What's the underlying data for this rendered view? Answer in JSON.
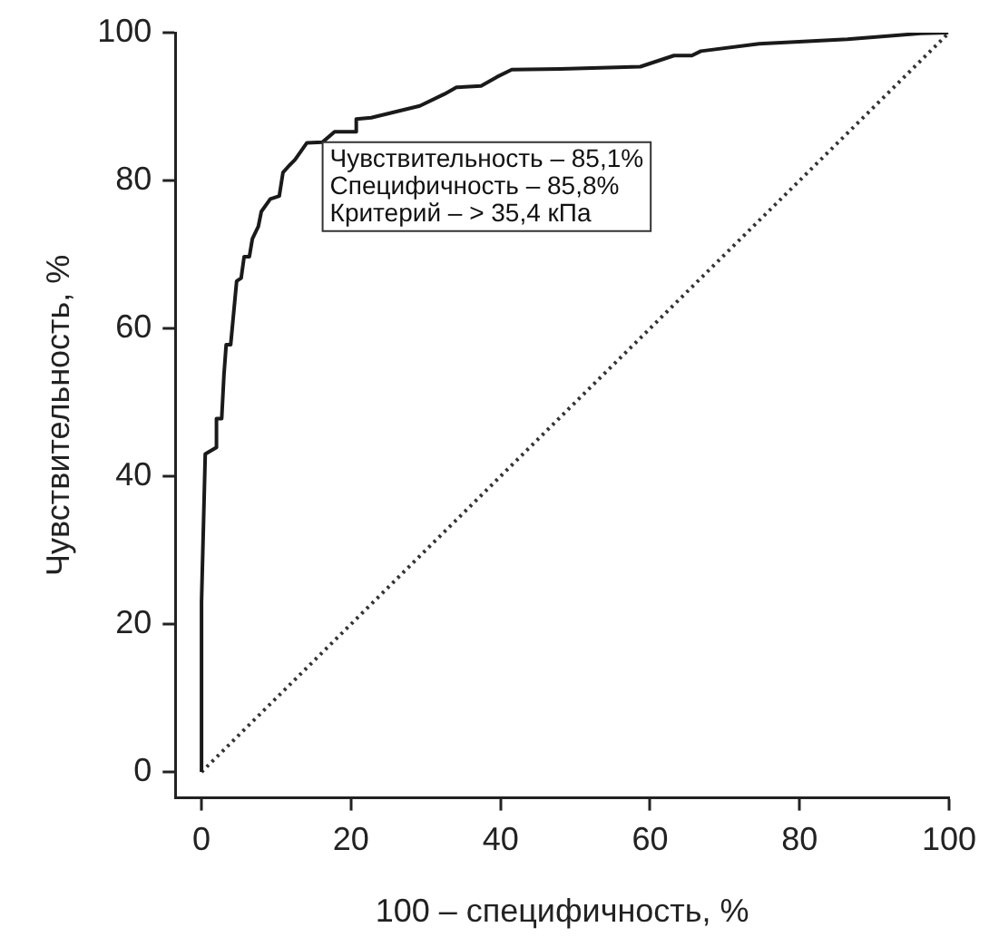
{
  "chart_data": {
    "type": "line",
    "xlabel": "100 – специфичность, %",
    "ylabel": "Чувствительность, %",
    "xlim": [
      -3.5,
      100
    ],
    "ylim": [
      -3.5,
      100
    ],
    "xticks": [
      0,
      20,
      40,
      60,
      80,
      100
    ],
    "yticks": [
      0,
      20,
      40,
      60,
      80,
      100
    ],
    "grid": false,
    "legend": false,
    "marker": "none",
    "series": [
      {
        "color": "#1a1a1a",
        "line_style": "solid",
        "x": [
          0,
          0,
          0.5,
          2.0,
          2.0,
          2.7,
          3.0,
          3.3,
          3.9,
          4.7,
          5.3,
          5.7,
          6.4,
          6.8,
          7.6,
          8.0,
          9.2,
          10.4,
          10.9,
          11.7,
          12.5,
          14.1,
          16.2,
          17.8,
          20.7,
          20.7,
          22.7,
          29.2,
          32.5,
          34.1,
          37.4,
          39.5,
          41.5,
          48.0,
          58.7,
          63.2,
          65.6,
          66.8,
          74.6,
          86.4,
          96.3,
          99.9
        ],
        "values": [
          0,
          23,
          43,
          43.9,
          47.8,
          47.8,
          53.7,
          57.8,
          57.8,
          66.4,
          66.8,
          69.7,
          69.7,
          72.1,
          73.8,
          75.8,
          77.5,
          77.9,
          81.1,
          82,
          82.8,
          85.1,
          85.2,
          86.6,
          86.6,
          88.3,
          88.5,
          90.1,
          91.7,
          92.6,
          92.8,
          94,
          95,
          95.1,
          95.4,
          96.9,
          96.9,
          97.5,
          98.5,
          99.1,
          99.9,
          100
        ]
      },
      {
        "color": "#333333",
        "line_style": "dotted",
        "x": [
          0,
          100
        ],
        "values": [
          0,
          100
        ]
      }
    ],
    "annotations": [
      "Чувствительность – 85,1%",
      "Специфичность – 85,8%",
      "Критерий – > 35,4 кПа"
    ]
  }
}
